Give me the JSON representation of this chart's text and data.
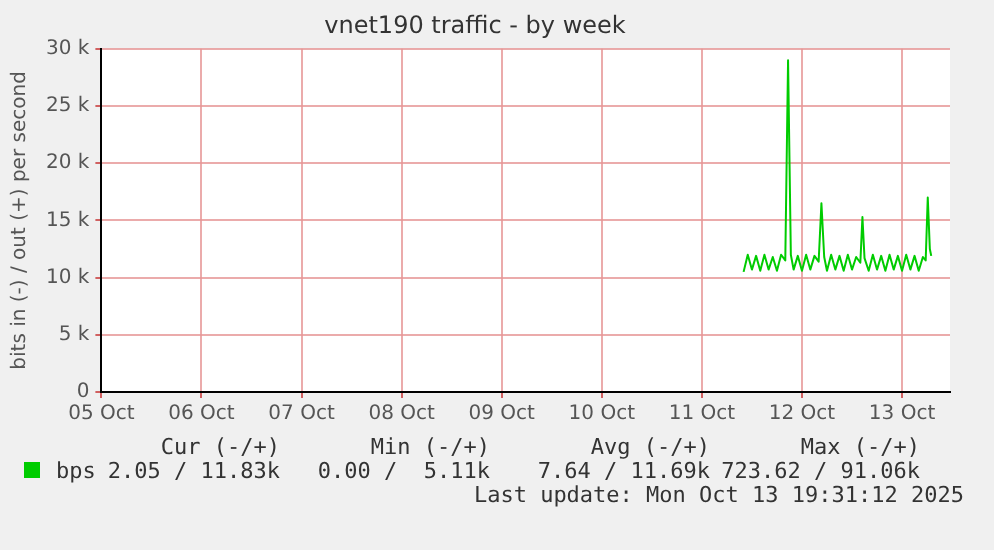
{
  "chart_data": {
    "type": "line",
    "title": "vnet190 traffic - by week",
    "ylabel": "bits in (-) / out (+) per second",
    "x": [
      "2025-10-11T10:00",
      "2025-10-11T11:00",
      "2025-10-11T12:00",
      "2025-10-11T13:00",
      "2025-10-11T14:00",
      "2025-10-11T15:00",
      "2025-10-11T16:00",
      "2025-10-11T17:00",
      "2025-10-11T18:00",
      "2025-10-11T19:00",
      "2025-10-11T20:00",
      "2025-10-11T20:40",
      "2025-10-11T21:20",
      "2025-10-11T22:00",
      "2025-10-11T23:00",
      "2025-10-12T00:00",
      "2025-10-12T01:00",
      "2025-10-12T02:00",
      "2025-10-12T03:00",
      "2025-10-12T04:00",
      "2025-10-12T04:40",
      "2025-10-12T05:20",
      "2025-10-12T06:00",
      "2025-10-12T07:00",
      "2025-10-12T08:00",
      "2025-10-12T09:00",
      "2025-10-12T10:00",
      "2025-10-12T11:00",
      "2025-10-12T12:00",
      "2025-10-12T13:00",
      "2025-10-12T14:00",
      "2025-10-12T14:30",
      "2025-10-12T15:00",
      "2025-10-12T16:00",
      "2025-10-12T17:00",
      "2025-10-12T18:00",
      "2025-10-12T19:00",
      "2025-10-12T20:00",
      "2025-10-12T21:00",
      "2025-10-12T22:00",
      "2025-10-12T23:00",
      "2025-10-13T00:00",
      "2025-10-13T01:00",
      "2025-10-13T02:00",
      "2025-10-13T03:00",
      "2025-10-13T04:00",
      "2025-10-13T05:00",
      "2025-10-13T05:40",
      "2025-10-13T06:10",
      "2025-10-13T06:40",
      "2025-10-13T07:00"
    ],
    "series": [
      {
        "name": "bps",
        "color": "#00cc00",
        "values": [
          10500,
          12000,
          10700,
          11900,
          10600,
          12000,
          10700,
          11800,
          10600,
          12000,
          11500,
          29000,
          12000,
          10700,
          11900,
          10600,
          12000,
          10700,
          11900,
          11400,
          16500,
          11800,
          10600,
          12000,
          10700,
          11900,
          10600,
          12000,
          10700,
          11800,
          11300,
          15300,
          11700,
          10600,
          12000,
          10700,
          11900,
          10600,
          12000,
          10700,
          11900,
          10600,
          12000,
          10700,
          11900,
          10600,
          11800,
          11500,
          17000,
          12500,
          11900
        ]
      }
    ],
    "xlim": [
      "2025-10-05",
      "2025-10-13T11:30"
    ],
    "xticks": [
      {
        "value": "2025-10-05",
        "label": "05 Oct"
      },
      {
        "value": "2025-10-06",
        "label": "06 Oct"
      },
      {
        "value": "2025-10-07",
        "label": "07 Oct"
      },
      {
        "value": "2025-10-08",
        "label": "08 Oct"
      },
      {
        "value": "2025-10-09",
        "label": "09 Oct"
      },
      {
        "value": "2025-10-10",
        "label": "10 Oct"
      },
      {
        "value": "2025-10-11",
        "label": "11 Oct"
      },
      {
        "value": "2025-10-12",
        "label": "12 Oct"
      },
      {
        "value": "2025-10-13",
        "label": "13 Oct"
      }
    ],
    "ylim": [
      0,
      30000
    ],
    "yticks": [
      0,
      {
        "value": 5000,
        "label": "5 k"
      },
      {
        "value": 10000,
        "label": "10 k"
      },
      {
        "value": 15000,
        "label": "15 k"
      },
      {
        "value": 20000,
        "label": "20 k"
      },
      {
        "value": 25000,
        "label": "25 k"
      },
      {
        "value": 30000,
        "label": "30 k"
      }
    ],
    "grid": true,
    "legend": "bottom",
    "marker": "none",
    "line_style": "solid",
    "annotations": [
      "Cur (-/+)",
      "Min (-/+)",
      "Avg (-/+)",
      "Max (-/+)",
      "2.05 / 11.83k",
      "0.00 /  5.11k",
      "7.64 / 11.69k",
      "723.62 / 91.06k",
      "Last update: Mon Oct 13 19:31:12 2025"
    ]
  }
}
